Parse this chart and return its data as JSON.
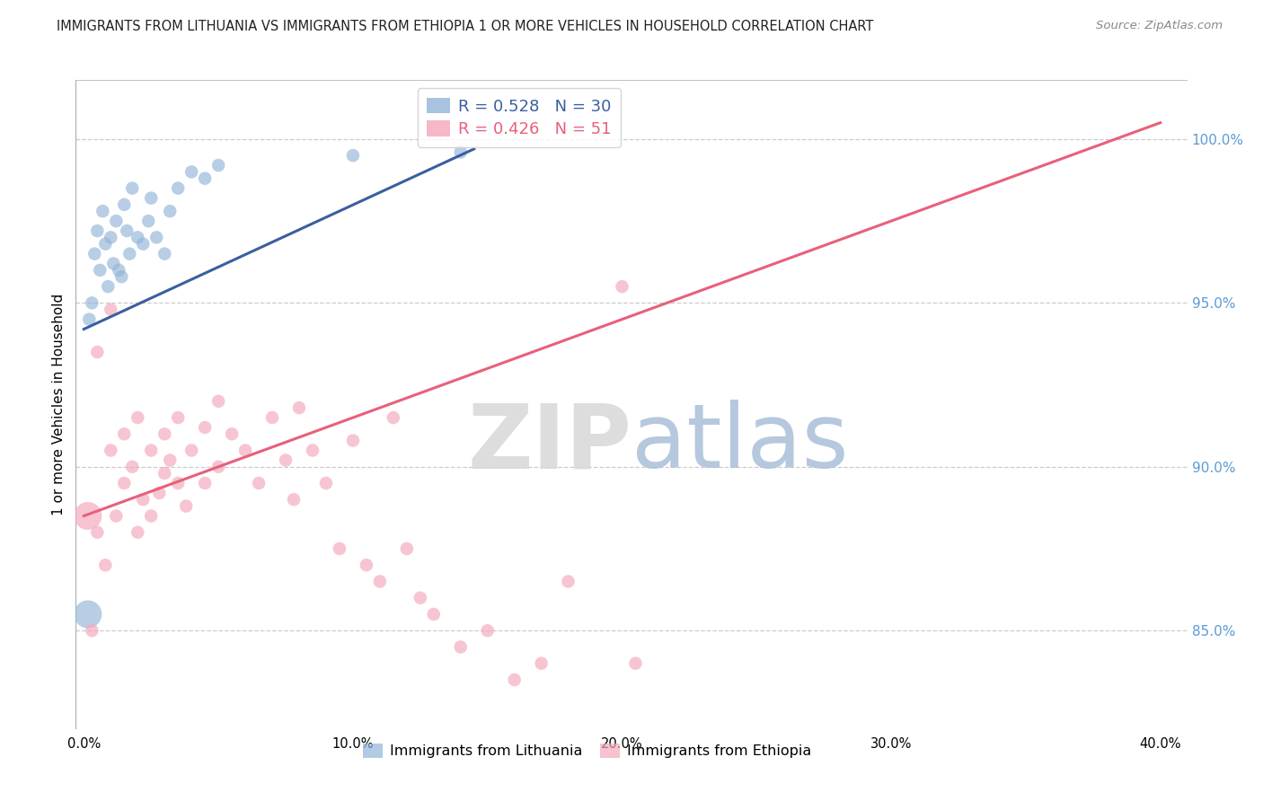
{
  "title": "IMMIGRANTS FROM LITHUANIA VS IMMIGRANTS FROM ETHIOPIA 1 OR MORE VEHICLES IN HOUSEHOLD CORRELATION CHART",
  "source": "Source: ZipAtlas.com",
  "ylabel": "1 or more Vehicles in Household",
  "y_ticks": [
    85.0,
    90.0,
    95.0,
    100.0
  ],
  "x_ticks": [
    0,
    10,
    20,
    30,
    40
  ],
  "x_tick_labels": [
    "0.0%",
    "10.0%",
    "20.0%",
    "30.0%",
    "40.0%"
  ],
  "y_tick_labels": [
    "85.0%",
    "90.0%",
    "95.0%",
    "100.0%"
  ],
  "R_blue": 0.528,
  "N_blue": 30,
  "R_pink": 0.426,
  "N_pink": 51,
  "blue_color": "#92B4D8",
  "pink_color": "#F4A7B9",
  "blue_line_color": "#3A5FA0",
  "pink_line_color": "#E8607A",
  "watermark_zip": "ZIP",
  "watermark_atlas": "atlas",
  "background_color": "#FFFFFF",
  "grid_color": "#CCCCCC",
  "right_tick_color": "#5B9BD5",
  "xlim": [
    -0.3,
    41.0
  ],
  "ylim": [
    82.0,
    101.8
  ],
  "blue_line_x0": 0.0,
  "blue_line_x1": 14.5,
  "blue_line_y0": 94.2,
  "blue_line_y1": 99.7,
  "pink_line_x0": 0.0,
  "pink_line_x1": 40.0,
  "pink_line_y0": 88.5,
  "pink_line_y1": 100.5,
  "blue_pts_x": [
    0.2,
    0.3,
    0.4,
    0.5,
    0.6,
    0.7,
    0.8,
    0.9,
    1.0,
    1.1,
    1.2,
    1.3,
    1.4,
    1.5,
    1.6,
    1.7,
    1.8,
    2.0,
    2.2,
    2.4,
    2.5,
    2.7,
    3.0,
    3.2,
    3.5,
    4.0,
    4.5,
    5.0,
    10.0,
    14.0
  ],
  "blue_pts_y": [
    94.5,
    95.0,
    96.5,
    97.2,
    96.0,
    97.8,
    96.8,
    95.5,
    97.0,
    96.2,
    97.5,
    96.0,
    95.8,
    98.0,
    97.2,
    96.5,
    98.5,
    97.0,
    96.8,
    97.5,
    98.2,
    97.0,
    96.5,
    97.8,
    98.5,
    99.0,
    98.8,
    99.2,
    99.5,
    99.6
  ],
  "blue_pts_big": [
    [
      0.15,
      85.5
    ]
  ],
  "pink_pts_x": [
    0.3,
    0.5,
    0.5,
    0.8,
    1.0,
    1.0,
    1.2,
    1.5,
    1.5,
    1.8,
    2.0,
    2.0,
    2.2,
    2.5,
    2.5,
    2.8,
    3.0,
    3.0,
    3.2,
    3.5,
    3.5,
    3.8,
    4.0,
    4.5,
    4.5,
    5.0,
    5.0,
    5.5,
    6.0,
    6.5,
    7.0,
    7.5,
    7.8,
    8.0,
    8.5,
    9.0,
    9.5,
    10.0,
    10.5,
    11.0,
    11.5,
    12.0,
    12.5,
    13.0,
    14.0,
    15.0,
    16.0,
    17.0,
    18.0,
    20.0,
    20.5
  ],
  "pink_pts_y": [
    85.0,
    88.0,
    93.5,
    87.0,
    90.5,
    94.8,
    88.5,
    91.0,
    89.5,
    90.0,
    88.0,
    91.5,
    89.0,
    90.5,
    88.5,
    89.2,
    91.0,
    89.8,
    90.2,
    91.5,
    89.5,
    88.8,
    90.5,
    89.5,
    91.2,
    92.0,
    90.0,
    91.0,
    90.5,
    89.5,
    91.5,
    90.2,
    89.0,
    91.8,
    90.5,
    89.5,
    87.5,
    90.8,
    87.0,
    86.5,
    91.5,
    87.5,
    86.0,
    85.5,
    84.5,
    85.0,
    83.5,
    84.0,
    86.5,
    95.5,
    84.0
  ],
  "pink_pts_big": [
    [
      0.15,
      88.5
    ]
  ],
  "legend_blue_label": "R = 0.528   N = 30",
  "legend_pink_label": "R = 0.426   N = 51",
  "bottom_legend_blue": "Immigrants from Lithuania",
  "bottom_legend_pink": "Immigrants from Ethiopia"
}
